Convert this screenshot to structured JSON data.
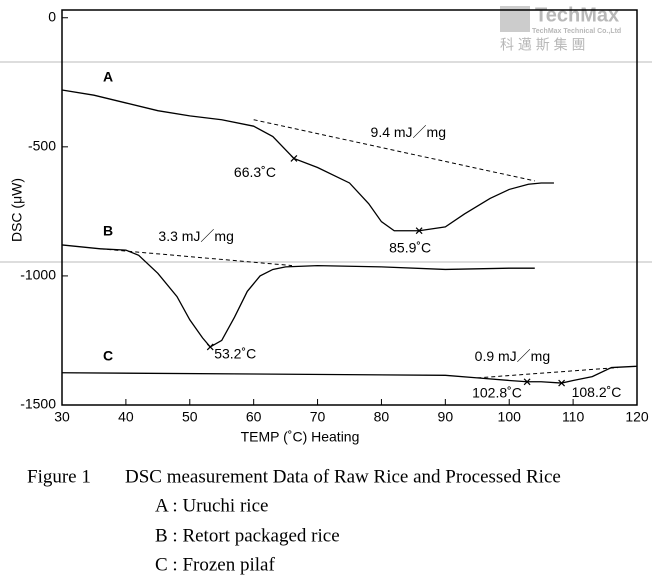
{
  "chart_data": {
    "type": "line",
    "watermark": {
      "brand": "TechMax",
      "company": "TechMax Technical Co.,Ltd",
      "chinese": "科 邁 斯 集 團"
    },
    "xlabel": "TEMP (˚C) Heating",
    "ylabel": "DSC (μW)",
    "xlim": [
      30,
      120
    ],
    "ylim": [
      -1500,
      30
    ],
    "xticks": [
      30,
      40,
      50,
      60,
      70,
      80,
      90,
      100,
      110,
      120
    ],
    "yticks": [
      0,
      -500,
      -1000,
      -1500
    ],
    "series": [
      {
        "name": "A",
        "color": "#000000",
        "x": [
          30,
          35,
          40,
          45,
          50,
          55,
          60,
          63,
          66.3,
          70,
          75,
          78,
          80,
          82,
          85.9,
          90,
          93,
          97,
          100,
          103,
          105,
          107
        ],
        "values": [
          -280,
          -300,
          -330,
          -360,
          -380,
          -395,
          -420,
          -460,
          -545,
          -580,
          -640,
          -720,
          -790,
          -825,
          -825,
          -810,
          -760,
          -700,
          -665,
          -645,
          -640,
          -640
        ]
      },
      {
        "name": "B",
        "color": "#000000",
        "x": [
          30,
          36,
          40,
          42,
          45,
          48,
          50,
          52,
          53.2,
          55,
          57,
          59,
          61,
          63,
          65,
          70,
          80,
          90,
          100,
          104
        ],
        "values": [
          -880,
          -895,
          -900,
          -920,
          -990,
          -1080,
          -1170,
          -1240,
          -1275,
          -1250,
          -1160,
          -1060,
          -1000,
          -975,
          -965,
          -960,
          -965,
          -975,
          -970,
          -970
        ]
      },
      {
        "name": "C",
        "color": "#000000",
        "x": [
          30,
          60,
          90,
          95,
          100,
          102.8,
          105,
          108.2,
          110,
          113,
          116,
          120
        ],
        "values": [
          -1375,
          -1380,
          -1385,
          -1395,
          -1405,
          -1410,
          -1410,
          -1415,
          -1405,
          -1390,
          -1355,
          -1350
        ]
      }
    ],
    "baselines": [
      {
        "label": "9.4 mJ／mg",
        "x": [
          60,
          104
        ],
        "values": [
          -395,
          -632
        ]
      },
      {
        "label": "3.3 mJ／mg",
        "x": [
          36,
          66
        ],
        "values": [
          -895,
          -960
        ]
      },
      {
        "label": "0.9 mJ／mg",
        "x": [
          95,
          117
        ],
        "values": [
          -1395,
          -1355
        ]
      }
    ],
    "peaks": [
      {
        "label": "66.3˚C",
        "x": 66.3,
        "y": -545
      },
      {
        "label": "85.9˚C",
        "x": 85.9,
        "y": -825
      },
      {
        "label": "53.2˚C",
        "x": 53.2,
        "y": -1275
      },
      {
        "label": "102.8˚C",
        "x": 102.8,
        "y": -1410
      },
      {
        "label": "108.2˚C",
        "x": 108.2,
        "y": -1415
      }
    ],
    "caption": {
      "figure": "Figure 1",
      "title": "DSC measurement Data of Raw Rice and Processed Rice",
      "items": [
        "A : Uruchi rice",
        "B : Retort packaged rice",
        "C : Frozen pilaf"
      ]
    }
  }
}
